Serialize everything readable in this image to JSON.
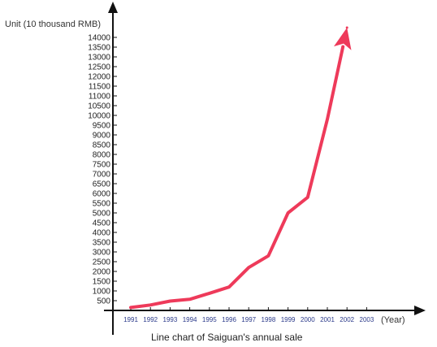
{
  "chart_data": {
    "type": "line",
    "title": "Line chart of Saiguan's annual sale",
    "xlabel": "(Year)",
    "ylabel": "Unit (10 thousand RMB)",
    "categories": [
      "1991",
      "1992",
      "1993",
      "1994",
      "1995",
      "1996",
      "1997",
      "1998",
      "1999",
      "2000",
      "2001",
      "2002",
      "2003"
    ],
    "yticks": [
      "500",
      "1000",
      "1500",
      "2000",
      "2500",
      "3000",
      "3500",
      "4000",
      "4500",
      "5000",
      "5500",
      "6000",
      "6500",
      "7000",
      "7500",
      "8000",
      "8500",
      "9000",
      "9500",
      "10000",
      "10500",
      "11000",
      "11500",
      "12000",
      "12500",
      "13000",
      "13500",
      "14000"
    ],
    "ylim": [
      0,
      14500
    ],
    "grid": false,
    "legend": "none",
    "series": [
      {
        "x": [
          1991,
          1992,
          1993,
          1994,
          1995,
          1996,
          1997,
          1998,
          1999,
          2000,
          2001,
          2002
        ],
        "values": [
          150,
          280,
          480,
          570,
          880,
          1200,
          2200,
          2800,
          5000,
          5800,
          9800,
          14500
        ],
        "color": "#ee3a5a"
      }
    ],
    "axis_color": "#111111"
  }
}
